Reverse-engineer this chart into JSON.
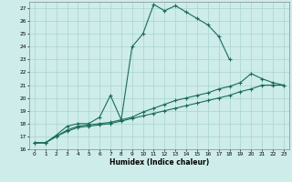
{
  "xlabel": "Humidex (Indice chaleur)",
  "bg_color": "#cdecea",
  "grid_color": "#a8d5d1",
  "line_color": "#1a6b5a",
  "xlim": [
    -0.5,
    23.5
  ],
  "ylim": [
    16,
    27.5
  ],
  "xticks": [
    0,
    1,
    2,
    3,
    4,
    5,
    6,
    7,
    8,
    9,
    10,
    11,
    12,
    13,
    14,
    15,
    16,
    17,
    18,
    19,
    20,
    21,
    22,
    23
  ],
  "yticks": [
    16,
    17,
    18,
    19,
    20,
    21,
    22,
    23,
    24,
    25,
    26,
    27
  ],
  "series": [
    {
      "x": [
        0,
        1,
        2,
        3,
        4,
        5,
        6,
        7,
        8,
        9,
        10,
        11,
        12,
        13,
        14,
        15,
        16,
        17,
        18,
        19,
        20,
        21,
        22,
        23
      ],
      "y": [
        16.5,
        16.5,
        17.1,
        17.8,
        18.0,
        18.0,
        18.5,
        20.2,
        18.3,
        24.0,
        25.0,
        27.3,
        26.8,
        27.2,
        26.7,
        26.2,
        25.7,
        24.8,
        23.0,
        null,
        null,
        null,
        null,
        null
      ]
    },
    {
      "x": [
        0,
        1,
        2,
        3,
        4,
        5,
        6,
        7,
        8,
        9,
        10,
        11,
        12,
        13,
        14,
        15,
        16,
        17,
        18,
        19,
        20,
        21,
        22,
        23
      ],
      "y": [
        16.5,
        16.5,
        17.0,
        17.5,
        17.8,
        17.9,
        18.0,
        18.1,
        18.3,
        18.5,
        18.9,
        19.2,
        19.5,
        19.8,
        20.0,
        20.2,
        20.4,
        20.7,
        20.9,
        21.2,
        21.9,
        21.5,
        21.2,
        21.0
      ]
    },
    {
      "x": [
        0,
        1,
        2,
        3,
        4,
        5,
        6,
        7,
        8,
        9,
        10,
        11,
        12,
        13,
        14,
        15,
        16,
        17,
        18,
        19,
        20,
        21,
        22,
        23
      ],
      "y": [
        16.5,
        16.5,
        17.0,
        17.4,
        17.7,
        17.8,
        17.9,
        18.0,
        18.2,
        18.4,
        18.6,
        18.8,
        19.0,
        19.2,
        19.4,
        19.6,
        19.8,
        20.0,
        20.2,
        20.5,
        20.7,
        21.0,
        21.0,
        21.0
      ]
    }
  ]
}
